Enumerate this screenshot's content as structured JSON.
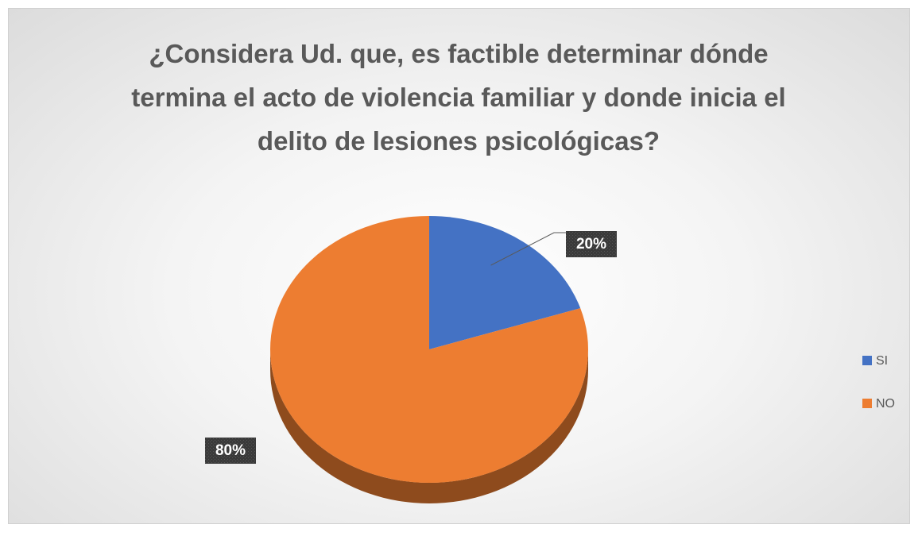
{
  "chart_data": {
    "type": "pie",
    "title": "¿Considera Ud. que, es factible determinar dónde termina el acto de violencia familiar y donde inicia el delito de lesiones psicológicas?",
    "categories": [
      "SI",
      "NO"
    ],
    "values": [
      20,
      80
    ],
    "value_labels": [
      "20%",
      "80%"
    ],
    "colors": [
      "#4472c4",
      "#ed7d31"
    ],
    "legend": "right"
  }
}
